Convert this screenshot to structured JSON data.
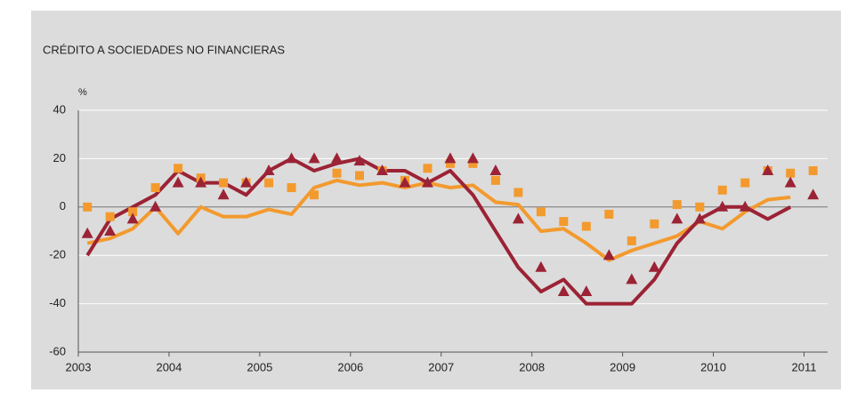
{
  "chart_data": {
    "type": "line",
    "title": "CRÉDITO A SOCIEDADES NO FINANCIERAS",
    "y_label": "%",
    "xlim": [
      2003,
      2011.26
    ],
    "xticks": [
      2003,
      2004,
      2005,
      2006,
      2007,
      2008,
      2009,
      2010,
      2011
    ],
    "ylim": [
      -60,
      40
    ],
    "yticks": [
      -60,
      -40,
      -20,
      0,
      20,
      40
    ],
    "grid": true,
    "x": [
      2003.1,
      2003.35,
      2003.6,
      2003.85,
      2004.1,
      2004.35,
      2004.6,
      2004.85,
      2005.1,
      2005.35,
      2005.6,
      2005.85,
      2006.1,
      2006.35,
      2006.6,
      2006.85,
      2007.1,
      2007.35,
      2007.6,
      2007.85,
      2008.1,
      2008.35,
      2008.6,
      2008.85,
      2009.1,
      2009.35,
      2009.6,
      2009.85,
      2010.1,
      2010.35,
      2010.6,
      2010.85,
      2011.1
    ],
    "series": [
      {
        "style": "line",
        "color": "#f39a2e",
        "values": [
          -15,
          -13,
          -9,
          0,
          -11,
          0,
          -4,
          -4,
          -1,
          -3,
          8,
          11,
          9,
          10,
          8,
          10,
          8,
          9,
          2,
          1,
          -10,
          -9,
          -15,
          -22,
          -18,
          -15,
          -12,
          -6,
          -9,
          -2,
          3,
          4,
          null
        ]
      },
      {
        "style": "line",
        "color": "#9b2335",
        "values": [
          -20,
          -5,
          0,
          5,
          15,
          10,
          10,
          5,
          15,
          20,
          15,
          18,
          20,
          15,
          15,
          10,
          15,
          5,
          -10,
          -25,
          -35,
          -30,
          -40,
          -40,
          -40,
          -30,
          -15,
          -5,
          0,
          0,
          -5,
          0,
          null
        ]
      },
      {
        "style": "square",
        "color": "#f39a2e",
        "values": [
          0,
          -4,
          -2,
          8,
          16,
          12,
          10,
          10,
          10,
          8,
          5,
          14,
          13,
          15,
          11,
          16,
          18,
          18,
          11,
          6,
          -2,
          -6,
          -8,
          -3,
          -14,
          -7,
          1,
          0,
          7,
          10,
          15,
          14,
          15
        ]
      },
      {
        "style": "triangle",
        "color": "#9b2335",
        "values": [
          -11,
          -10,
          -5,
          0,
          10,
          10,
          5,
          10,
          15,
          20,
          20,
          20,
          19,
          15,
          10,
          10,
          20,
          20,
          15,
          -5,
          -25,
          -35,
          -35,
          -20,
          -30,
          -25,
          -5,
          -5,
          0,
          0,
          15,
          10,
          5
        ]
      }
    ]
  }
}
